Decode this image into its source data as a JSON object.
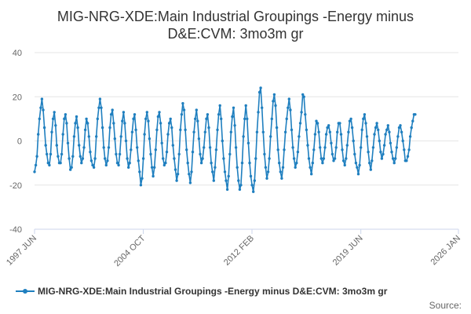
{
  "chart_data": {
    "type": "line",
    "title_lines": [
      "MIG-NRG-XDE:Main Industrial Groupings -Energy minus",
      "D&E:CVM: 3mo3m gr"
    ],
    "xlabel": "",
    "ylabel": "",
    "ylim": [
      -40,
      40
    ],
    "yticks": [
      "40",
      "20",
      "0",
      "-20",
      "-40"
    ],
    "xlim": [
      1997.42,
      2026.0
    ],
    "xtick_labels": [
      "1997 JUN",
      "2004 OCT",
      "2012 FEB",
      "2019 JUN",
      "2026 JAN"
    ],
    "xtick_values": [
      1997.42,
      2004.75,
      2012.08,
      2019.42,
      2026.0
    ],
    "grid": true,
    "legend": "bottom",
    "source_label": "Source:",
    "colors": {
      "line": "#1f7fbf",
      "grid": "#e6e6e6",
      "axis": "#ccd6eb"
    },
    "series": [
      {
        "name": "MIG-NRG-XDE:Main Industrial Groupings -Energy minus D&E:CVM: 3mo3m gr",
        "x_start": 1997.42,
        "x_step": 0.08333,
        "values": [
          -14,
          -11,
          -7,
          3,
          10,
          15,
          19,
          14,
          6,
          -2,
          -6,
          -10,
          -11,
          -6,
          4,
          10,
          13,
          7,
          -2,
          -7,
          -10,
          -10,
          -6,
          3,
          10,
          12,
          8,
          -1,
          -8,
          -13,
          -12,
          -7,
          2,
          8,
          11,
          6,
          -2,
          -7,
          -10,
          -8,
          -3,
          5,
          10,
          8,
          2,
          -5,
          -9,
          -11,
          -12,
          -8,
          2,
          10,
          15,
          19,
          15,
          6,
          -3,
          -8,
          -11,
          -9,
          -3,
          6,
          12,
          14,
          8,
          1,
          -6,
          -10,
          -11,
          -6,
          2,
          9,
          13,
          8,
          0,
          -8,
          -12,
          -10,
          -4,
          4,
          10,
          12,
          5,
          -3,
          -9,
          -14,
          -20,
          -17,
          -8,
          3,
          10,
          13,
          9,
          1,
          -6,
          -12,
          -16,
          -12,
          -4,
          5,
          11,
          13,
          8,
          -1,
          -8,
          -11,
          -10,
          -5,
          3,
          8,
          10,
          6,
          -2,
          -8,
          -13,
          -18,
          -15,
          -6,
          5,
          12,
          17,
          14,
          5,
          -4,
          -10,
          -15,
          -19,
          -14,
          -5,
          4,
          10,
          14,
          9,
          1,
          -6,
          -10,
          -8,
          -3,
          4,
          10,
          12,
          6,
          -3,
          -10,
          -14,
          -18,
          -12,
          -4,
          5,
          12,
          16,
          10,
          0,
          -8,
          -14,
          -18,
          -22,
          -16,
          -6,
          4,
          11,
          15,
          7,
          -3,
          -12,
          -18,
          -22,
          -20,
          -10,
          2,
          10,
          16,
          10,
          -1,
          -10,
          -16,
          -20,
          -23,
          -18,
          -8,
          4,
          13,
          22,
          24,
          15,
          4,
          -6,
          -12,
          -17,
          -14,
          -8,
          2,
          10,
          18,
          21,
          16,
          6,
          -4,
          -10,
          -14,
          -17,
          -12,
          -4,
          4,
          10,
          15,
          19,
          14,
          5,
          -3,
          -8,
          -12,
          -10,
          -5,
          2,
          8,
          13,
          21,
          20,
          12,
          5,
          -2,
          -8,
          -12,
          -15,
          -10,
          -4,
          3,
          9,
          8,
          4,
          -3,
          -8,
          -10,
          -8,
          -3,
          3,
          6,
          7,
          4,
          -1,
          -6,
          -9,
          -8,
          -3,
          4,
          8,
          8,
          3,
          -4,
          -9,
          -11,
          -8,
          -2,
          4,
          9,
          10,
          6,
          0,
          -6,
          -10,
          -12,
          -15,
          -11,
          -3,
          5,
          10,
          12,
          8,
          2,
          -5,
          -10,
          -13,
          -9,
          -3,
          3,
          6,
          8,
          5,
          0,
          -5,
          -8,
          -6,
          -2,
          3,
          5,
          7,
          4,
          -1,
          -5,
          -8,
          -10,
          -8,
          -3,
          2,
          6,
          7,
          4,
          0,
          -4,
          -9,
          -9,
          -7,
          -4,
          2,
          6,
          9,
          12,
          12
        ]
      }
    ]
  }
}
